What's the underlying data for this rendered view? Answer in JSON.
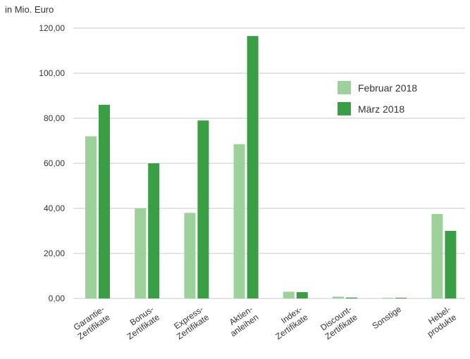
{
  "unit_label": "in Mio. Euro",
  "colors": {
    "februar": "#9dd19b",
    "maerz": "#3a9f44",
    "grid": "#c8c8c8"
  },
  "chart_data": {
    "type": "bar",
    "ylabel": "in Mio. Euro",
    "ylim": [
      0,
      120
    ],
    "yticks": [
      "0,00",
      "20,00",
      "40,00",
      "60,00",
      "80,00",
      "100,00",
      "120,00"
    ],
    "grid": true,
    "legend_position": "top-right",
    "categories": [
      [
        "Garantie-",
        "Zertifikate"
      ],
      [
        "Bonus-",
        "Zertifikate"
      ],
      [
        "Express-",
        "Zertifikate"
      ],
      [
        "Aktien-",
        "anleihen"
      ],
      [
        "Index-",
        "Zertifikate"
      ],
      [
        "Discount-",
        "Zertifikate"
      ],
      [
        "Sonstige"
      ],
      [
        "Hebel-",
        "produkte"
      ]
    ],
    "series": [
      {
        "name": "Februar 2018",
        "values": [
          72.0,
          40.0,
          38.0,
          68.5,
          3.0,
          0.8,
          0.3,
          37.5
        ]
      },
      {
        "name": "März 2018",
        "values": [
          86.0,
          60.0,
          79.0,
          116.5,
          2.8,
          0.4,
          0.3,
          30.0
        ]
      }
    ]
  }
}
